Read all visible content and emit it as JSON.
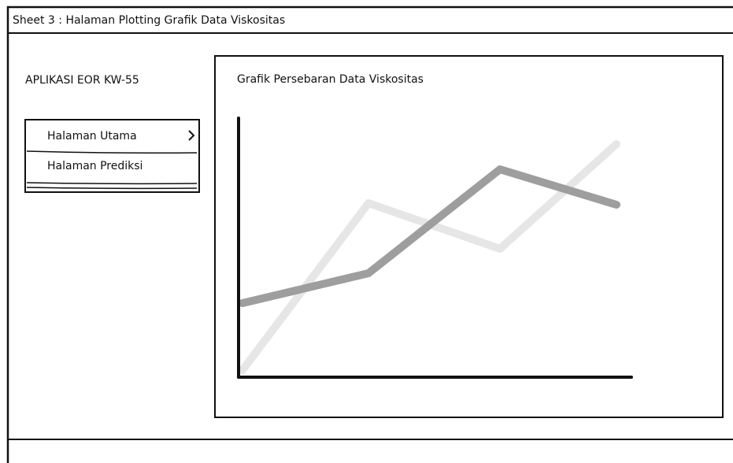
{
  "header": {
    "title": "Sheet 3 : Halaman Plotting Grafik Data Viskositas"
  },
  "sidebar": {
    "app_name": "APLIKASI EOR KW-55",
    "menu": {
      "items": [
        "Halaman Utama",
        "Halaman Prediksi"
      ]
    }
  },
  "chart_panel": {
    "title": "Grafik Persebaran Data Viskositas"
  }
}
